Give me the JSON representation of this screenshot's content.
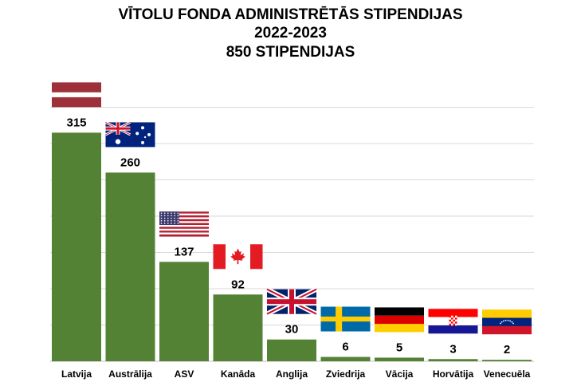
{
  "title_lines": [
    "VĪTOLU FONDA ADMINISTRĒTĀS STIPENDIJAS",
    "2022-2023",
    "850 STIPENDIJAS"
  ],
  "colors": {
    "bar": "#548235",
    "grid": "#d9d9d9",
    "axis": "#bfbfbf"
  },
  "chart_data": {
    "type": "bar",
    "title": "VĪTOLU FONDA ADMINISTRĒTĀS STIPENDIJAS 2022-2023 850 STIPENDIJAS",
    "categories": [
      "Latvija",
      "Austrālija",
      "ASV",
      "Kanāda",
      "Anglija",
      "Zviedrija",
      "Vācija",
      "Horvātija",
      "Venecuēla"
    ],
    "values": [
      315,
      260,
      137,
      92,
      30,
      6,
      5,
      3,
      2
    ],
    "flags": [
      "latvia-flag",
      "australia-flag",
      "usa-flag",
      "canada-flag",
      "uk-flag",
      "sweden-flag",
      "germany-flag",
      "croatia-flag",
      "venezuela-flag"
    ],
    "ylim": [
      0,
      350
    ],
    "grid": true,
    "data_labels": true,
    "xlabel": "",
    "ylabel": ""
  }
}
